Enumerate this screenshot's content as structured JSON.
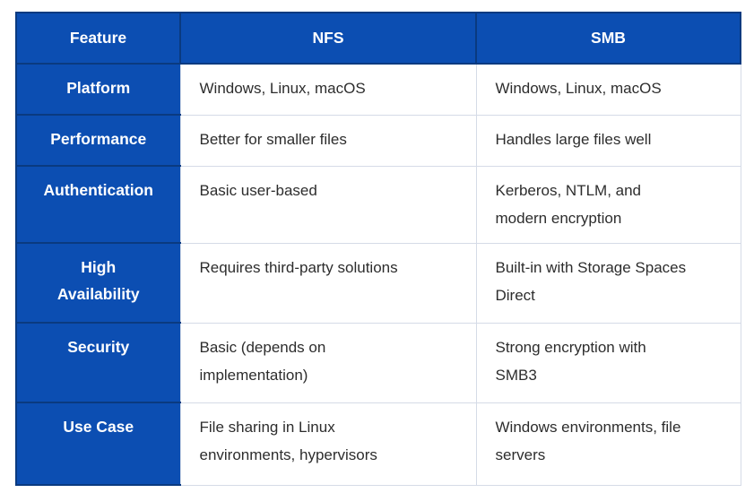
{
  "colors": {
    "cell_blue": "#0c4eb2",
    "dark_border": "#0a3a80",
    "light_border": "#d5dbe7",
    "body_text": "#2d2d2d",
    "header_text": "#ffffff"
  },
  "table": {
    "columns": {
      "feature": "Feature",
      "nfs": "NFS",
      "smb": "SMB"
    },
    "rows": [
      {
        "feature": "Platform",
        "nfs": "Windows, Linux, macOS",
        "smb": "Windows, Linux, macOS"
      },
      {
        "feature": "Performance",
        "nfs": "Better for smaller files",
        "smb": "Handles large files well"
      },
      {
        "feature": "Authentication",
        "nfs": "Basic user-based",
        "smb": "Kerberos, NTLM, and\nmodern encryption"
      },
      {
        "feature": "High\nAvailability",
        "nfs": "Requires third-party solutions",
        "smb": "Built-in with Storage Spaces\nDirect"
      },
      {
        "feature": "Security",
        "nfs": "Basic (depends on\nimplementation)",
        "smb": "Strong encryption with\nSMB3"
      },
      {
        "feature": "Use Case",
        "nfs": "File sharing in Linux\nenvironments, hypervisors",
        "smb": "Windows environments, file\nservers"
      }
    ]
  }
}
